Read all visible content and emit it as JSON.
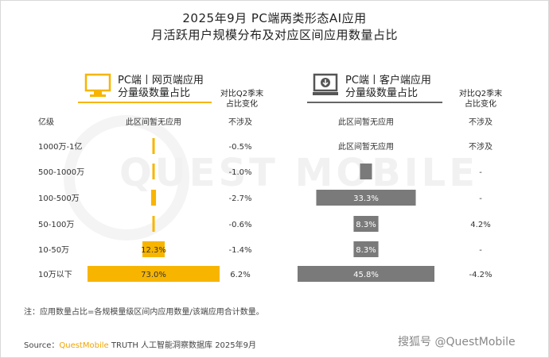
{
  "title_line1": "2025年9月 PC端两类形态AI应用",
  "title_line2": "月活跃用户规模分布及对应区间应用数量占比",
  "watermark": "QUEST MOBILE",
  "web_header": {
    "line1": "PC端丨网页端应用",
    "line2": "分量级数量占比"
  },
  "client_header": {
    "line1": "PC端丨客户端应用",
    "line2": "分量级数量占比"
  },
  "compare_header": {
    "line1": "对比Q2季末",
    "line2": "占比变化"
  },
  "none_text": "此区间暂无应用",
  "na_text": "不涉及",
  "dash": "-",
  "colors": {
    "web": "#f7b500",
    "web_light": "#fcd36b",
    "client": "#7a7a7a"
  },
  "chart_data": {
    "type": "bar",
    "categories": [
      "亿级",
      "1000万-1亿",
      "500-1000万",
      "100-500万",
      "50-100万",
      "10-50万",
      "10万以下"
    ],
    "series": [
      {
        "name": "PC端丨网页端应用",
        "values": [
          null,
          0.5,
          1.0,
          2.7,
          0.6,
          12.3,
          73.0
        ],
        "labels": [
          "",
          "",
          "",
          "",
          "",
          "12.3%",
          "73.0%"
        ],
        "change": [
          "不涉及",
          "-0.5%",
          "-1.0%",
          "-2.7%",
          "-0.6%",
          "-1.4%",
          "6.2%"
        ]
      },
      {
        "name": "PC端丨客户端应用",
        "values": [
          null,
          null,
          4.0,
          33.3,
          8.3,
          8.3,
          45.8
        ],
        "labels": [
          "",
          "",
          "",
          "33.3%",
          "8.3%",
          "8.3%",
          "45.8%"
        ],
        "change": [
          "不涉及",
          "不涉及",
          "-",
          "-",
          "4.2%",
          "-",
          "-4.2%"
        ]
      }
    ],
    "unit": "%"
  },
  "note": "注：应用数量占比=各规模量级区间内应用数量/该端应用合计数量。",
  "source_label": "Source：",
  "source_brand": "QuestMobile",
  "source_rest": " TRUTH 人工智能洞察数据库 2025年9月",
  "credit": "搜狐号 @QuestMobile"
}
